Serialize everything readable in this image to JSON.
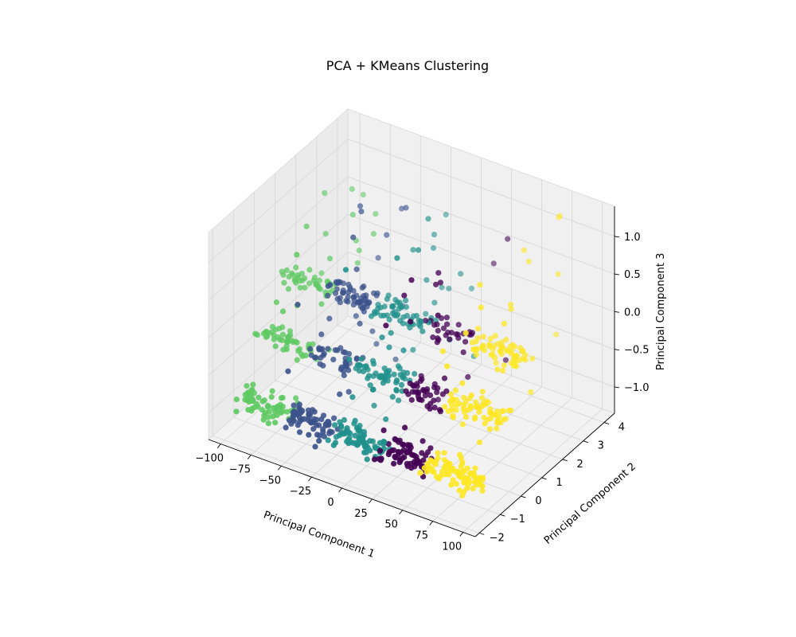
{
  "chart_data": {
    "type": "scatter",
    "projection": "3d",
    "title": "PCA + KMeans Clustering",
    "xlabel": "Principal Component 1",
    "ylabel": "Principal Component 2",
    "zlabel": "Principal Component 3",
    "xlim": [
      -110,
      110
    ],
    "ylim": [
      -2.2,
      4.5
    ],
    "zlim": [
      -1.35,
      1.4
    ],
    "x_ticks": [
      "−100",
      "−75",
      "−50",
      "−25",
      "0",
      "25",
      "50",
      "75",
      "100"
    ],
    "x_tick_values": [
      -100,
      -75,
      -50,
      -25,
      0,
      25,
      50,
      75,
      100
    ],
    "y_ticks": [
      "−2",
      "−1",
      "0",
      "1",
      "2",
      "3",
      "4"
    ],
    "y_tick_values": [
      -2,
      -1,
      0,
      1,
      2,
      3,
      4
    ],
    "z_ticks": [
      "−1.0",
      "−0.5",
      "0.0",
      "0.5",
      "1.0"
    ],
    "z_tick_values": [
      -1.0,
      -0.5,
      0.0,
      0.5,
      1.0
    ],
    "grid": true,
    "legend": "none",
    "colors": {
      "cluster_0": "#440154",
      "cluster_1": "#3b528b",
      "cluster_2": "#21918c",
      "cluster_3": "#5ec962",
      "cluster_4": "#fde725",
      "pane": "#f2f2f2",
      "pane_edge": "#d9d9d9",
      "grid": "#d8d8d8"
    },
    "clusters": [
      {
        "id": 0,
        "x_range": [
          20,
          55
        ]
      },
      {
        "id": 1,
        "x_range": [
          -60,
          -25
        ]
      },
      {
        "id": 2,
        "x_range": [
          -25,
          20
        ]
      },
      {
        "id": 3,
        "x_range": [
          -100,
          -60
        ]
      },
      {
        "id": 4,
        "x_range": [
          55,
          100
        ]
      }
    ],
    "bands": [
      {
        "y": -1.2,
        "z": -0.95
      },
      {
        "y": -0.2,
        "z": -0.35
      },
      {
        "y": 0.8,
        "z": 0.2
      }
    ]
  }
}
